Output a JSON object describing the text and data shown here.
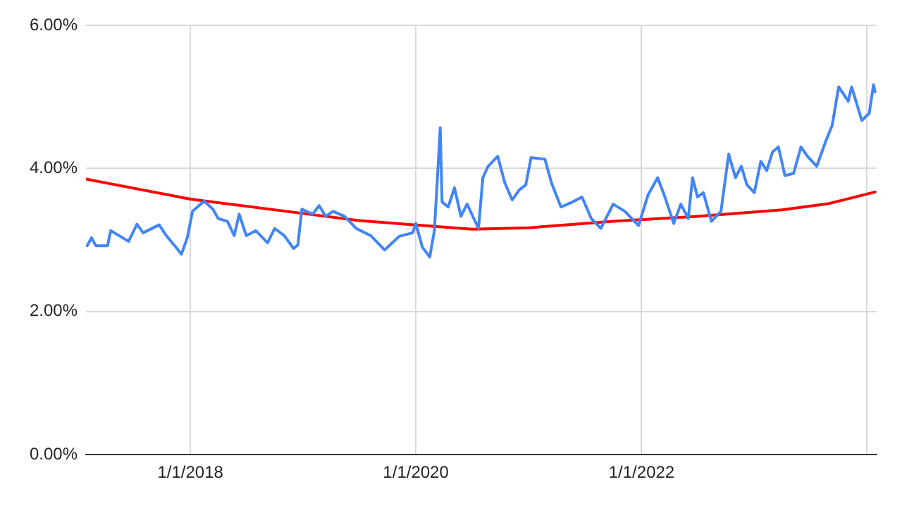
{
  "chart_data": {
    "type": "line",
    "xlim": [
      "2017-01-28",
      "2024-02-01"
    ],
    "xticks": [
      {
        "value": "2018-01-01",
        "label": "1/1/2018"
      },
      {
        "value": "2020-01-01",
        "label": "1/1/2020"
      },
      {
        "value": "2022-01-01",
        "label": "1/1/2022"
      },
      {
        "value": "2024-01-01",
        "label": null
      }
    ],
    "ylim": [
      0,
      6
    ],
    "yticks": [
      {
        "value": 0,
        "label": "0.00%"
      },
      {
        "value": 2,
        "label": "2.00%"
      },
      {
        "value": 4,
        "label": "4.00%"
      },
      {
        "value": 6,
        "label": "6.00%"
      }
    ],
    "grid": true,
    "legend": false,
    "series": [
      {
        "color": "#4285f4",
        "x": [
          "2017-02-01",
          "2017-02-15",
          "2017-03-01",
          "2017-04-08",
          "2017-04-18",
          "2017-05-15",
          "2017-06-15",
          "2017-07-12",
          "2017-08-01",
          "2017-09-22",
          "2017-10-15",
          "2017-11-15",
          "2017-12-03",
          "2017-12-22",
          "2018-01-08",
          "2018-02-03",
          "2018-02-15",
          "2018-03-15",
          "2018-04-01",
          "2018-05-01",
          "2018-05-23",
          "2018-06-08",
          "2018-07-01",
          "2018-08-01",
          "2018-09-08",
          "2018-10-01",
          "2018-11-01",
          "2018-12-01",
          "2018-12-15",
          "2018-12-28",
          "2019-02-01",
          "2019-02-22",
          "2019-03-15",
          "2019-04-08",
          "2019-05-15",
          "2019-06-22",
          "2019-08-08",
          "2019-09-22",
          "2019-11-08",
          "2019-12-22",
          "2020-01-01",
          "2020-01-22",
          "2020-02-15",
          "2020-03-01",
          "2020-03-11",
          "2020-03-20",
          "2020-03-26",
          "2020-04-15",
          "2020-05-05",
          "2020-05-26",
          "2020-06-15",
          "2020-07-22",
          "2020-08-05",
          "2020-08-22",
          "2020-09-22",
          "2020-10-15",
          "2020-11-08",
          "2020-12-01",
          "2020-12-22",
          "2021-01-08",
          "2021-02-22",
          "2021-03-15",
          "2021-04-15",
          "2021-05-22",
          "2021-06-22",
          "2021-07-22",
          "2021-08-22",
          "2021-10-01",
          "2021-11-08",
          "2021-12-22",
          "2022-01-22",
          "2022-02-22",
          "2022-03-15",
          "2022-04-15",
          "2022-05-08",
          "2022-06-01",
          "2022-06-15",
          "2022-07-01",
          "2022-07-20",
          "2022-08-15",
          "2022-09-15",
          "2022-10-10",
          "2022-11-01",
          "2022-11-20",
          "2022-12-08",
          "2023-01-01",
          "2023-01-22",
          "2023-02-10",
          "2023-03-01",
          "2023-03-20",
          "2023-04-10",
          "2023-05-08",
          "2023-06-01",
          "2023-06-22",
          "2023-07-22",
          "2023-08-22",
          "2023-09-10",
          "2023-10-01",
          "2023-11-01",
          "2023-11-12",
          "2023-12-15",
          "2024-01-08",
          "2024-01-22",
          "2024-01-27"
        ],
        "values": [
          2.92,
          3.03,
          2.92,
          2.92,
          3.13,
          3.06,
          2.98,
          3.22,
          3.1,
          3.21,
          3.06,
          2.9,
          2.8,
          3.03,
          3.4,
          3.5,
          3.54,
          3.43,
          3.3,
          3.26,
          3.06,
          3.36,
          3.06,
          3.13,
          2.96,
          3.16,
          3.06,
          2.88,
          2.93,
          3.43,
          3.36,
          3.48,
          3.33,
          3.4,
          3.33,
          3.16,
          3.06,
          2.86,
          3.05,
          3.1,
          3.23,
          2.9,
          2.76,
          3.13,
          3.87,
          4.57,
          3.53,
          3.46,
          3.73,
          3.33,
          3.5,
          3.16,
          3.87,
          4.03,
          4.17,
          3.8,
          3.56,
          3.7,
          3.77,
          4.15,
          4.13,
          3.8,
          3.46,
          3.53,
          3.6,
          3.3,
          3.16,
          3.5,
          3.4,
          3.2,
          3.63,
          3.87,
          3.63,
          3.23,
          3.5,
          3.3,
          3.87,
          3.6,
          3.66,
          3.26,
          3.4,
          4.2,
          3.87,
          4.03,
          3.77,
          3.66,
          4.1,
          3.97,
          4.23,
          4.3,
          3.9,
          3.93,
          4.3,
          4.17,
          4.03,
          4.4,
          4.6,
          5.14,
          4.94,
          5.14,
          4.67,
          4.77,
          5.17,
          5.07
        ]
      },
      {
        "color": "#ff0000",
        "x": [
          "2017-01-28",
          "2018-01-01",
          "2019-01-01",
          "2019-07-01",
          "2020-01-01",
          "2020-07-01",
          "2021-01-01",
          "2021-10-01",
          "2022-07-01",
          "2023-04-01",
          "2023-09-01",
          "2024-01-27"
        ],
        "values": [
          3.85,
          3.57,
          3.37,
          3.27,
          3.21,
          3.15,
          3.17,
          3.26,
          3.33,
          3.42,
          3.51,
          3.67
        ]
      }
    ]
  }
}
